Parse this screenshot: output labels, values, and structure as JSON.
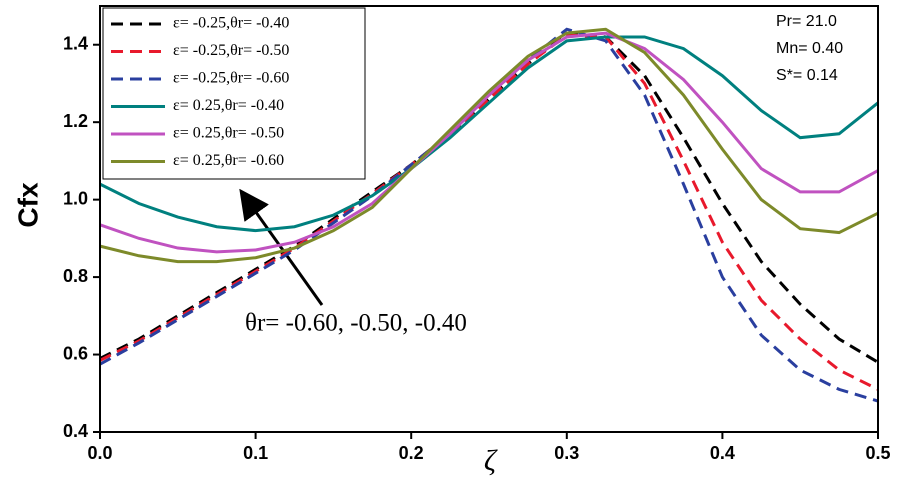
{
  "chart_data": {
    "type": "line",
    "x_label": "ζ",
    "y_label": "Cfx",
    "x": [
      0,
      0.025,
      0.05,
      0.075,
      0.1,
      0.125,
      0.15,
      0.175,
      0.2,
      0.225,
      0.25,
      0.275,
      0.3,
      0.325,
      0.35,
      0.375,
      0.4,
      0.425,
      0.45,
      0.475,
      0.5
    ],
    "series": [
      {
        "name": "ε= -0.25,θr= -0.40",
        "color": "#000000",
        "style": "dashed",
        "values": [
          0.59,
          0.64,
          0.7,
          0.76,
          0.82,
          0.88,
          0.95,
          1.02,
          1.09,
          1.17,
          1.26,
          1.35,
          1.43,
          1.42,
          1.32,
          1.16,
          0.99,
          0.84,
          0.73,
          0.64,
          0.58
        ]
      },
      {
        "name": "ε= -0.25,θr= -0.50",
        "color": "#e8192c",
        "style": "dashed",
        "values": [
          0.585,
          0.635,
          0.695,
          0.755,
          0.815,
          0.875,
          0.945,
          1.015,
          1.09,
          1.17,
          1.26,
          1.35,
          1.425,
          1.42,
          1.3,
          1.1,
          0.89,
          0.74,
          0.64,
          0.56,
          0.51
        ]
      },
      {
        "name": "ε= -0.25,θr= -0.60",
        "color": "#2a3f9f",
        "style": "dashed",
        "values": [
          0.575,
          0.63,
          0.69,
          0.75,
          0.81,
          0.87,
          0.94,
          1.01,
          1.09,
          1.17,
          1.27,
          1.36,
          1.44,
          1.41,
          1.27,
          1.04,
          0.8,
          0.65,
          0.56,
          0.51,
          0.48
        ]
      },
      {
        "name": "ε= 0.25,θr= -0.40",
        "color": "#00807f",
        "style": "solid",
        "values": [
          1.04,
          0.99,
          0.955,
          0.93,
          0.92,
          0.93,
          0.96,
          1.01,
          1.08,
          1.16,
          1.25,
          1.34,
          1.41,
          1.42,
          1.42,
          1.39,
          1.32,
          1.23,
          1.16,
          1.17,
          1.25
        ]
      },
      {
        "name": "ε= 0.25,θr= -0.50",
        "color": "#c052c0",
        "style": "solid",
        "values": [
          0.935,
          0.9,
          0.875,
          0.865,
          0.87,
          0.89,
          0.93,
          0.99,
          1.08,
          1.17,
          1.27,
          1.36,
          1.42,
          1.43,
          1.39,
          1.31,
          1.2,
          1.08,
          1.02,
          1.02,
          1.075
        ]
      },
      {
        "name": "ε= 0.25,θr= -0.60",
        "color": "#7d8a2a",
        "style": "solid",
        "values": [
          0.88,
          0.855,
          0.84,
          0.84,
          0.85,
          0.875,
          0.92,
          0.98,
          1.08,
          1.18,
          1.28,
          1.37,
          1.43,
          1.44,
          1.38,
          1.27,
          1.13,
          1.0,
          0.925,
          0.915,
          0.965
        ]
      }
    ],
    "xlim": [
      0,
      0.5
    ],
    "xticks": [
      {
        "value": 0,
        "label": "0.0"
      },
      0.1,
      0.2,
      0.3,
      0.4,
      0.5
    ],
    "ylim": [
      0.4,
      1.5
    ],
    "yticks": [
      0.4,
      0.6,
      0.8,
      {
        "value": 1,
        "label": "1.0"
      },
      1.2,
      1.4
    ],
    "legend": "upper left",
    "parameters": [
      "Pr= 21.0",
      "Mn= 0.40",
      "S*= 0.14"
    ],
    "annotation": "θr= -0.60, -0.50, -0.40"
  }
}
